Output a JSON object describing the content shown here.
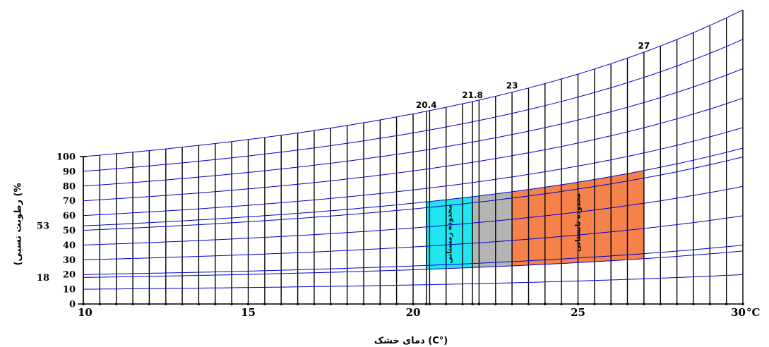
{
  "chart_data": {
    "type": "psychrometric",
    "x_axis": {
      "min": 10,
      "max": 30,
      "tick_labels": [
        {
          "value": 10,
          "label": "10"
        },
        {
          "value": 15,
          "label": "15"
        },
        {
          "value": 20,
          "label": "20"
        },
        {
          "value": 25,
          "label": "25"
        },
        {
          "value": 30,
          "label": "30"
        }
      ],
      "unit_label": "°C",
      "xlabel": "دمای خشک (C°)"
    },
    "y_axis": {
      "min": 0,
      "max": 100,
      "tick_labels": [
        "0",
        "10",
        "20",
        "30",
        "40",
        "50",
        "60",
        "70",
        "80",
        "90",
        "100"
      ],
      "ylabel": "(رطوبت نسبی (%"
    },
    "rh_curves": [
      10,
      20,
      30,
      40,
      50,
      60,
      70,
      80,
      90,
      100
    ],
    "rh_markers": [
      {
        "value": 53,
        "label": "53"
      },
      {
        "value": 18,
        "label": "18"
      }
    ],
    "temperature_markers": [
      {
        "value": 20.4,
        "label": "20.4"
      },
      {
        "value": 21.8,
        "label": "21.8"
      },
      {
        "value": 23,
        "label": "23"
      },
      {
        "value": 27,
        "label": "27"
      }
    ],
    "zones": [
      {
        "name": "winter",
        "label": "محدوده زمستانی",
        "t_min": 20.4,
        "t_max": 21.8,
        "rh_min": 18,
        "rh_max": 53,
        "color": "#22e5ef"
      },
      {
        "name": "overlap",
        "label": "",
        "t_min": 21.8,
        "t_max": 23,
        "rh_min": 18,
        "rh_max": 53,
        "color": "#b4b4b4"
      },
      {
        "name": "summer",
        "label": "محدوده تابستانی",
        "t_min": 23,
        "t_max": 27,
        "rh_min": 18,
        "rh_max": 53,
        "color": "#f5824a"
      }
    ],
    "colors": {
      "curve": "#0000cc",
      "vertical": "#000000"
    }
  }
}
